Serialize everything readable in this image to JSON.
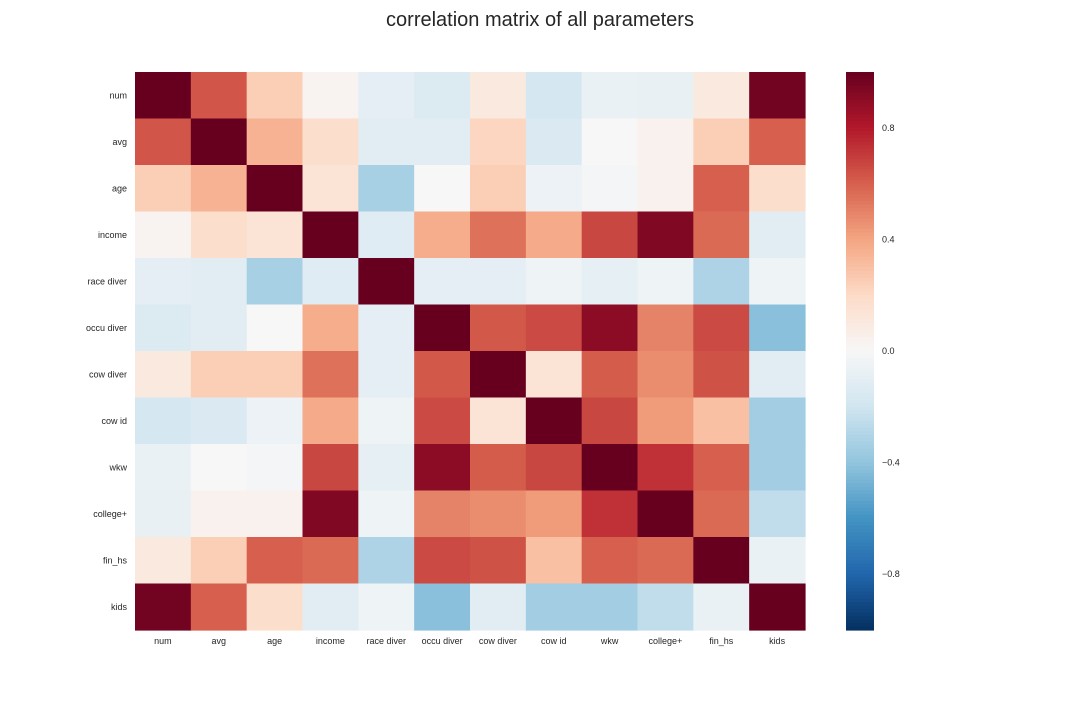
{
  "chart_data": {
    "type": "heatmap",
    "title": "correlation matrix of all parameters",
    "xlabel": "",
    "ylabel": "",
    "labels": [
      "num",
      "avg",
      "age",
      "income",
      "race diver",
      "occu diver",
      "cow diver",
      "cow id",
      "wkw",
      "college+",
      "fin_hs",
      "kids"
    ],
    "values": [
      [
        1.0,
        0.63,
        0.25,
        0.03,
        -0.1,
        -0.14,
        0.1,
        -0.18,
        -0.07,
        -0.08,
        0.1,
        0.97
      ],
      [
        0.63,
        1.0,
        0.35,
        0.18,
        -0.11,
        -0.11,
        0.22,
        -0.15,
        0.0,
        0.04,
        0.25,
        0.6
      ],
      [
        0.25,
        0.35,
        1.0,
        0.14,
        -0.33,
        0.0,
        0.25,
        -0.06,
        -0.02,
        0.04,
        0.6,
        0.18
      ],
      [
        0.03,
        0.18,
        0.14,
        1.0,
        -0.12,
        0.37,
        0.55,
        0.38,
        0.67,
        0.93,
        0.57,
        -0.11
      ],
      [
        -0.1,
        -0.11,
        -0.33,
        -0.12,
        1.0,
        -0.1,
        -0.1,
        -0.05,
        -0.09,
        -0.05,
        -0.31,
        -0.05
      ],
      [
        -0.14,
        -0.11,
        0.0,
        0.37,
        -0.1,
        1.0,
        0.62,
        0.66,
        0.9,
        0.5,
        0.66,
        -0.42
      ],
      [
        0.1,
        0.25,
        0.25,
        0.55,
        -0.1,
        0.62,
        1.0,
        0.14,
        0.61,
        0.47,
        0.64,
        -0.11
      ],
      [
        -0.18,
        -0.15,
        -0.06,
        0.38,
        -0.05,
        0.66,
        0.14,
        1.0,
        0.67,
        0.43,
        0.3,
        -0.35
      ],
      [
        -0.07,
        0.0,
        -0.02,
        0.67,
        -0.09,
        0.9,
        0.61,
        0.67,
        1.0,
        0.73,
        0.6,
        -0.35
      ],
      [
        -0.08,
        0.04,
        0.04,
        0.93,
        -0.05,
        0.5,
        0.47,
        0.43,
        0.73,
        1.0,
        0.57,
        -0.25
      ],
      [
        0.1,
        0.25,
        0.6,
        0.57,
        -0.31,
        0.66,
        0.64,
        0.3,
        0.6,
        0.57,
        1.0,
        -0.07
      ],
      [
        0.97,
        0.6,
        0.18,
        -0.11,
        -0.05,
        -0.42,
        -0.11,
        -0.35,
        -0.35,
        -0.25,
        -0.07,
        1.0
      ]
    ],
    "vmin": -1,
    "vmax": 1,
    "colormap": "RdBu_r",
    "colorbar_ticks": [
      0.8,
      0.4,
      0.0,
      -0.4,
      -0.8
    ],
    "colorbar_tick_labels": [
      "0.8",
      "0.4",
      "0.0",
      "−0.4",
      "−0.8"
    ],
    "grid": false
  }
}
